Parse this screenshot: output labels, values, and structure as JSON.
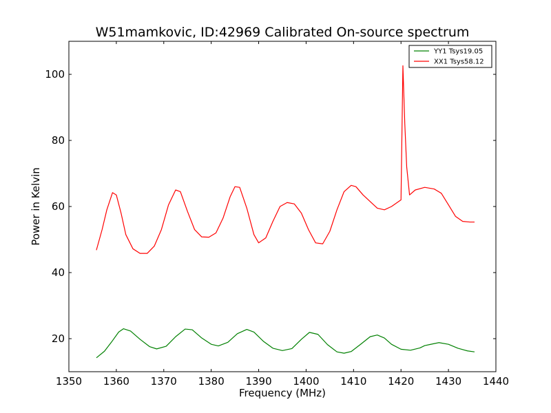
{
  "chart_data": {
    "type": "line",
    "title": "W51mamkovic, ID:42969 Calibrated On-source spectrum",
    "xlabel": "Frequency (MHz)",
    "ylabel": "Power in Kelvin",
    "xlim": [
      1350,
      1440
    ],
    "ylim": [
      10,
      110
    ],
    "xticks": [
      1350,
      1360,
      1370,
      1380,
      1390,
      1400,
      1410,
      1420,
      1430,
      1440
    ],
    "yticks": [
      20,
      40,
      60,
      80,
      100
    ],
    "grid": false,
    "legend_position": "top-right",
    "series": [
      {
        "name": "YY1 Tsys19.05",
        "color": "#008000",
        "x": [
          1355.8,
          1357.5,
          1359.0,
          1360.5,
          1361.5,
          1363.0,
          1365.0,
          1367.0,
          1368.5,
          1370.5,
          1372.5,
          1374.5,
          1376.0,
          1378.0,
          1380.0,
          1381.5,
          1383.5,
          1385.5,
          1387.5,
          1389.0,
          1391.0,
          1393.0,
          1395.0,
          1397.0,
          1399.0,
          1400.7,
          1402.5,
          1404.5,
          1406.5,
          1408.0,
          1409.5,
          1411.5,
          1413.5,
          1415.0,
          1416.5,
          1418.0,
          1420.0,
          1422.0,
          1424.0,
          1425.0,
          1426.0,
          1428.0,
          1430.0,
          1432.0,
          1434.0,
          1435.5
        ],
        "y": [
          14.2,
          16.2,
          19.0,
          22.0,
          23.0,
          22.3,
          19.8,
          17.6,
          16.9,
          17.7,
          20.6,
          22.9,
          22.7,
          20.2,
          18.3,
          17.8,
          18.9,
          21.5,
          22.8,
          22.0,
          19.2,
          17.1,
          16.4,
          17.0,
          19.8,
          21.9,
          21.3,
          18.2,
          16.0,
          15.6,
          16.1,
          18.3,
          20.6,
          21.1,
          20.2,
          18.3,
          16.8,
          16.5,
          17.2,
          17.9,
          18.2,
          18.8,
          18.3,
          17.1,
          16.3,
          16.0
        ]
      },
      {
        "name": "XX1 Tsys58.12",
        "color": "#ff0000",
        "x": [
          1355.8,
          1357.0,
          1358.0,
          1359.2,
          1360.0,
          1361.0,
          1362.0,
          1363.5,
          1365.0,
          1366.5,
          1368.0,
          1369.5,
          1371.0,
          1372.5,
          1373.5,
          1375.0,
          1376.5,
          1378.0,
          1379.5,
          1381.0,
          1382.5,
          1384.0,
          1385.0,
          1386.0,
          1387.5,
          1389.0,
          1390.0,
          1391.5,
          1393.0,
          1394.5,
          1396.0,
          1397.5,
          1399.0,
          1400.5,
          1402.0,
          1403.5,
          1405.0,
          1406.5,
          1408.0,
          1409.5,
          1410.5,
          1412.0,
          1413.5,
          1415.0,
          1416.5,
          1418.0,
          1419.5,
          1420.0,
          1420.4,
          1420.8,
          1421.2,
          1421.8,
          1423.0,
          1425.0,
          1427.0,
          1428.5,
          1430.0,
          1431.5,
          1433.0,
          1434.5,
          1435.5
        ],
        "y": [
          46.8,
          53.0,
          59.0,
          64.2,
          63.5,
          58.0,
          51.5,
          47.2,
          45.8,
          45.8,
          48.0,
          53.0,
          60.5,
          65.0,
          64.5,
          58.5,
          53.0,
          50.8,
          50.7,
          52.0,
          56.5,
          63.0,
          66.0,
          65.8,
          59.5,
          51.5,
          49.0,
          50.5,
          55.5,
          60.0,
          61.2,
          60.8,
          58.0,
          53.0,
          49.0,
          48.7,
          52.5,
          59.0,
          64.5,
          66.4,
          66.0,
          63.5,
          61.5,
          59.5,
          59.0,
          60.0,
          61.5,
          62.0,
          102.6,
          85.0,
          72.0,
          63.5,
          65.0,
          65.8,
          65.3,
          64.0,
          60.5,
          57.0,
          55.5,
          55.3,
          55.3
        ]
      }
    ]
  }
}
